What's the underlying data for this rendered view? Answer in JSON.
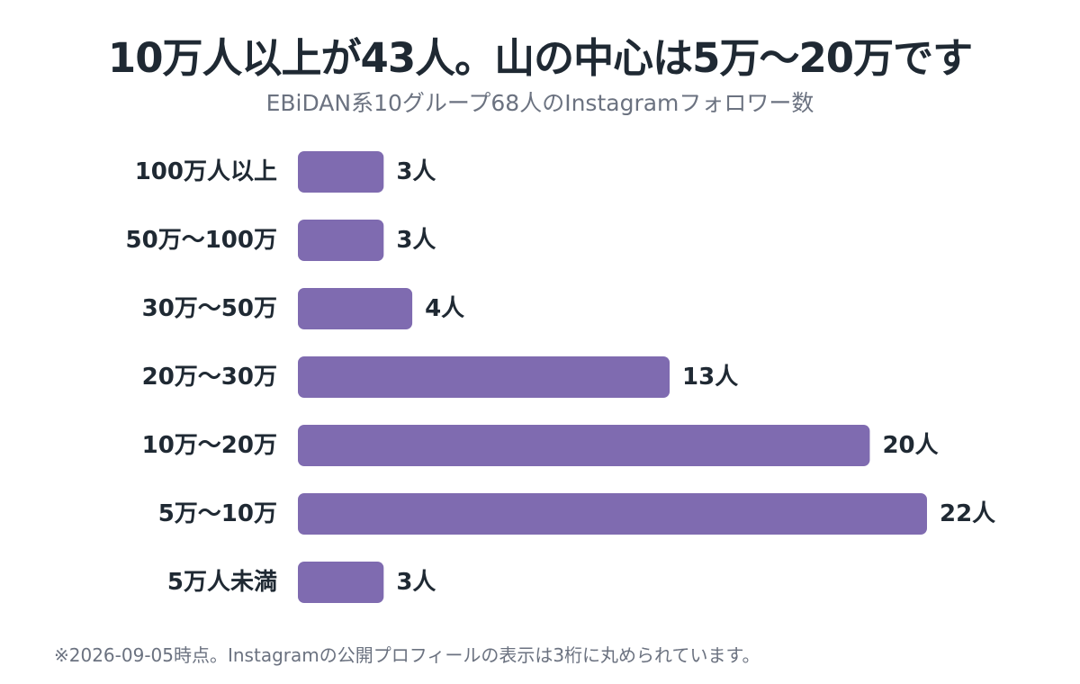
{
  "chart_data": {
    "type": "bar",
    "orientation": "horizontal",
    "title": "10万人以上が43人。山の中心は5万〜20万です",
    "subtitle": "EBiDAN系10グループ68人のInstagramフォロワー数",
    "categories": [
      "100万人以上",
      "50万〜100万",
      "30万〜50万",
      "20万〜30万",
      "10万〜20万",
      "5万〜10万",
      "5万人未満"
    ],
    "values": [
      3,
      3,
      4,
      13,
      20,
      22,
      3
    ],
    "value_labels": [
      "3人",
      "3人",
      "4人",
      "13人",
      "20人",
      "22人",
      "3人"
    ],
    "unit": "人",
    "xlim": [
      0,
      22
    ],
    "bar_color": "#7f6bb0",
    "grid": false,
    "legend": "none"
  },
  "footnote": "※2026-09-05時点。Instagramの公開プロフィールの表示は3桁に丸められています。"
}
